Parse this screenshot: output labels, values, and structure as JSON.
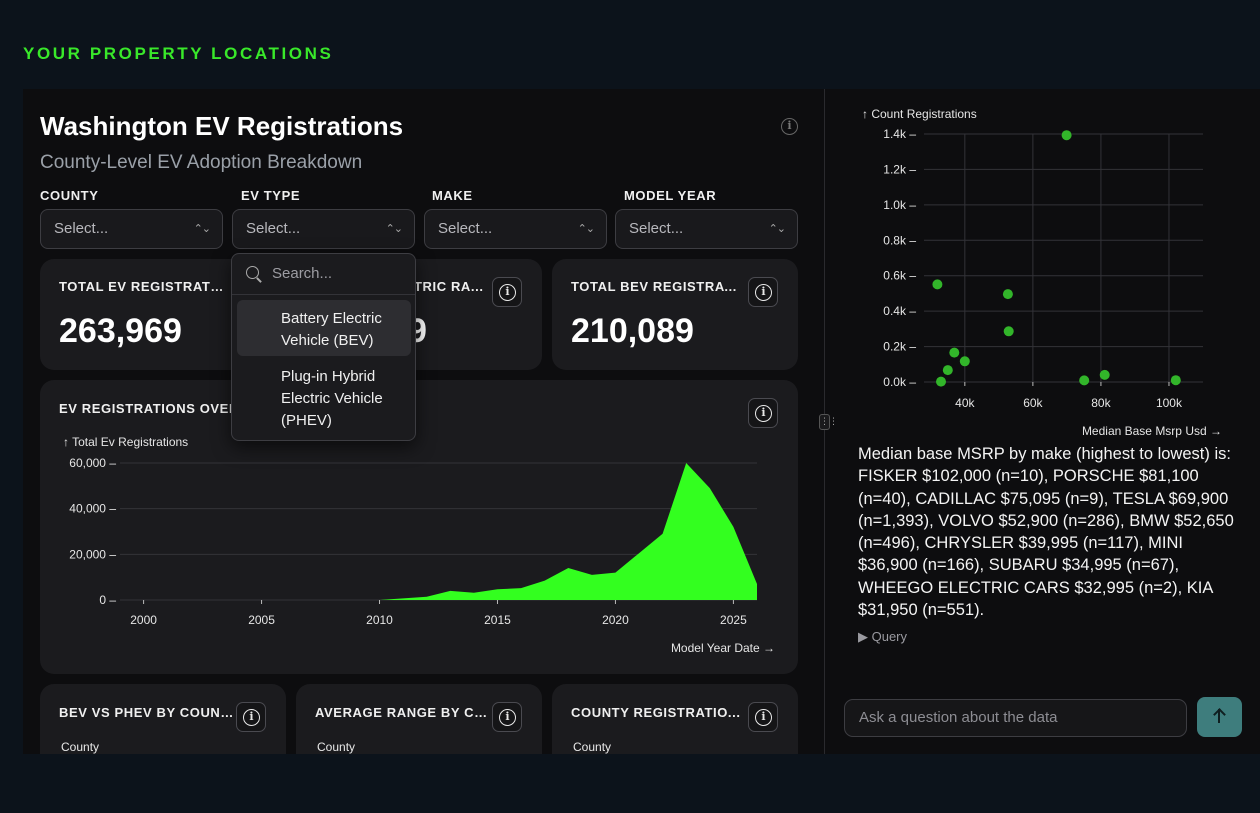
{
  "page_header": "YOUR PROPERTY LOCATIONS",
  "dashboard": {
    "title": "Washington EV Registrations",
    "subtitle": "County-Level EV Adoption Breakdown"
  },
  "filters": [
    {
      "label": "COUNTY",
      "placeholder": "Select..."
    },
    {
      "label": "EV TYPE",
      "placeholder": "Select..."
    },
    {
      "label": "MAKE",
      "placeholder": "Select..."
    },
    {
      "label": "MODEL YEAR",
      "placeholder": "Select..."
    }
  ],
  "dropdown": {
    "search_placeholder": "Search...",
    "options": [
      {
        "line1": "Battery Electric",
        "line2": "Vehicle (BEV)",
        "line3": ""
      },
      {
        "line1": "Plug-in Hybrid",
        "line2": "Electric Vehicle",
        "line3": "(PHEV)"
      }
    ]
  },
  "kpis": [
    {
      "title": "TOTAL EV REGISTRATI...",
      "value": "263,969"
    },
    {
      "title": "TRIC RA...",
      "value": "9"
    },
    {
      "title": "TOTAL BEV REGISTRATI...",
      "value": "210,089"
    }
  ],
  "trend_card": {
    "title": "EV REGISTRATIONS OVER",
    "y_axis_label": "↑ Total Ev Registrations",
    "x_axis_label": "Model Year Date →"
  },
  "bottom_cards": [
    {
      "title": "BEV VS PHEV BY COUNTY",
      "sub": "County"
    },
    {
      "title": "AVERAGE RANGE BY CO...",
      "sub": "County"
    },
    {
      "title": "COUNTY REGISTRATIO...",
      "sub": "County"
    }
  ],
  "scatter_card": {
    "y_axis_label": "↑ Count Registrations",
    "x_axis_label": "Median Base Msrp Usd →"
  },
  "chart_data": [
    {
      "type": "area",
      "title": "EV REGISTRATIONS OVER",
      "xlabel": "Model Year Date",
      "ylabel": "Total Ev Registrations",
      "x": [
        2000,
        2008,
        2010,
        2011,
        2012,
        2013,
        2014,
        2015,
        2016,
        2017,
        2018,
        2019,
        2020,
        2021,
        2022,
        2023,
        2024,
        2025,
        2026
      ],
      "values": [
        0,
        0,
        0,
        700,
        1400,
        4000,
        3200,
        4700,
        5200,
        8500,
        14000,
        11000,
        12000,
        20500,
        29000,
        60000,
        49000,
        32000,
        7000
      ],
      "xlim": [
        1999,
        2026
      ],
      "ylim": [
        0,
        60000
      ],
      "x_ticks": [
        2000,
        2005,
        2010,
        2015,
        2020,
        2025
      ],
      "x_tick_labels": [
        "2000",
        "2005",
        "2010",
        "2015",
        "2020",
        "2025"
      ],
      "y_ticks": [
        0,
        20000,
        40000,
        60000
      ],
      "y_tick_labels": [
        "0 –",
        "20,000 –",
        "40,000 –",
        "60,000 –"
      ],
      "color": "#33ff1f",
      "grid": true
    },
    {
      "type": "scatter",
      "xlabel": "Median Base Msrp Usd",
      "ylabel": "Count Registrations",
      "points": [
        {
          "x": 69900,
          "y": 1393
        },
        {
          "x": 31950,
          "y": 551
        },
        {
          "x": 52650,
          "y": 496
        },
        {
          "x": 52900,
          "y": 286
        },
        {
          "x": 36900,
          "y": 166
        },
        {
          "x": 39995,
          "y": 117
        },
        {
          "x": 34995,
          "y": 67
        },
        {
          "x": 81100,
          "y": 40
        },
        {
          "x": 32995,
          "y": 2
        },
        {
          "x": 75095,
          "y": 9
        },
        {
          "x": 102000,
          "y": 10
        }
      ],
      "xlim": [
        28000,
        110000
      ],
      "ylim": [
        0,
        1400
      ],
      "x_ticks": [
        40000,
        60000,
        80000,
        100000
      ],
      "x_tick_labels": [
        "40k",
        "60k",
        "80k",
        "100k"
      ],
      "y_ticks": [
        0,
        200,
        400,
        600,
        800,
        1000,
        1200,
        1400
      ],
      "y_tick_labels": [
        "0.0k –",
        "0.2k –",
        "0.4k –",
        "0.6k –",
        "0.8k –",
        "1.0k –",
        "1.2k –",
        "1.4k –"
      ],
      "color": "#32b52a",
      "grid": true
    }
  ],
  "answer": {
    "text": "Median base MSRP by make (highest to lowest) is: FISKER $102,000 (n=10), PORSCHE $81,100 (n=40), CADILLAC $75,095 (n=9), TESLA $69,900 (n=1,393), VOLVO $52,900 (n=286), BMW $52,650 (n=496), CHRYSLER $39,995 (n=117), MINI $36,900 (n=166), SUBARU $34,995 (n=67), WHEEGO ELECTRIC CARS $32,995 (n=2), KIA $31,950 (n=551).",
    "query_toggle": "▶ Query"
  },
  "chat": {
    "placeholder": "Ask a question about the data"
  },
  "colors": {
    "accent_green": "#39e82a",
    "send_button": "#3e7d7d"
  }
}
